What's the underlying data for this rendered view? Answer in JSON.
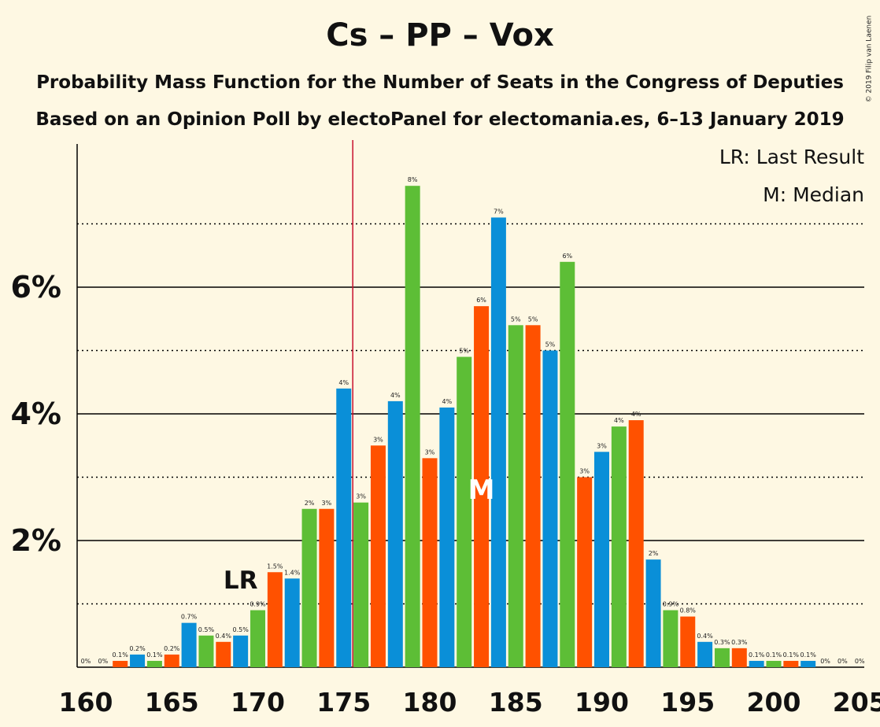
{
  "title": "Cs – PP – Vox",
  "subtitle1": "Probability Mass Function for the Number of Seats in the Congress of Deputies",
  "subtitle2": "Based on an Opinion Poll by electoPanel for electomania.es, 6–13 January 2019",
  "copyright": "© 2019 Filip van Laenen",
  "legend": {
    "last_result": "LR: Last Result",
    "median": "M: Median"
  },
  "colors": {
    "background": "#FEF8E3",
    "blue": "#0A8FD8",
    "green": "#5DBE36",
    "orange": "#FF5100",
    "majority_line": "#C8102E"
  },
  "chart_data": {
    "type": "bar",
    "x": [
      160,
      161,
      162,
      163,
      164,
      165,
      166,
      167,
      168,
      169,
      170,
      171,
      172,
      173,
      174,
      175,
      176,
      177,
      178,
      179,
      180,
      181,
      182,
      183,
      184,
      185,
      186,
      187,
      188,
      189,
      190,
      191,
      192,
      193,
      194,
      195,
      196,
      197,
      198,
      199,
      200,
      201,
      202,
      203,
      204,
      205
    ],
    "values": [
      0,
      0,
      0.1,
      0.2,
      0.1,
      0.2,
      0.7,
      0.5,
      0.4,
      0.5,
      0.9,
      1.5,
      1.4,
      2.5,
      2.5,
      4.4,
      2.6,
      3.5,
      4.2,
      7.6,
      3.3,
      4.1,
      4.9,
      5.7,
      7.1,
      5.4,
      5.4,
      5.0,
      6.4,
      3.0,
      3.4,
      3.8,
      3.9,
      1.7,
      0.9,
      0.8,
      0.4,
      0.3,
      0.3,
      0.1,
      0.1,
      0.1,
      0.1,
      0,
      0,
      0
    ],
    "labels": [
      "0%",
      "0%",
      "0.1%",
      "0.2%",
      "0.1%",
      "0.2%",
      "0.7%",
      "0.5%",
      "0.4%",
      "0.5%",
      "0.9%",
      "1.5%",
      "1.4%",
      "2%",
      "3%",
      "4%",
      "3%",
      "3%",
      "4%",
      "8%",
      "3%",
      "4%",
      "5%",
      "6%",
      "7%",
      "5%",
      "5%",
      "5%",
      "6%",
      "3%",
      "3%",
      "4%",
      "4%",
      "2%",
      "0.9%",
      "0.8%",
      "0.4%",
      "0.3%",
      "0.3%",
      "0.1%",
      "0.1%",
      "0.1%",
      "0.1%",
      "0%",
      "0%",
      "0%"
    ],
    "xticks": [
      "160",
      "165",
      "170",
      "175",
      "180",
      "185",
      "190",
      "195",
      "200",
      "205"
    ],
    "yticks": [
      "2%",
      "4%",
      "6%"
    ],
    "ylim": [
      0,
      8.2
    ],
    "xlim": [
      160,
      205
    ],
    "majority_threshold": 176,
    "last_result": 169,
    "last_result_label": "LR",
    "median": 183,
    "median_label": "M",
    "grid": "dotted at odd percents, solid at even percents"
  }
}
